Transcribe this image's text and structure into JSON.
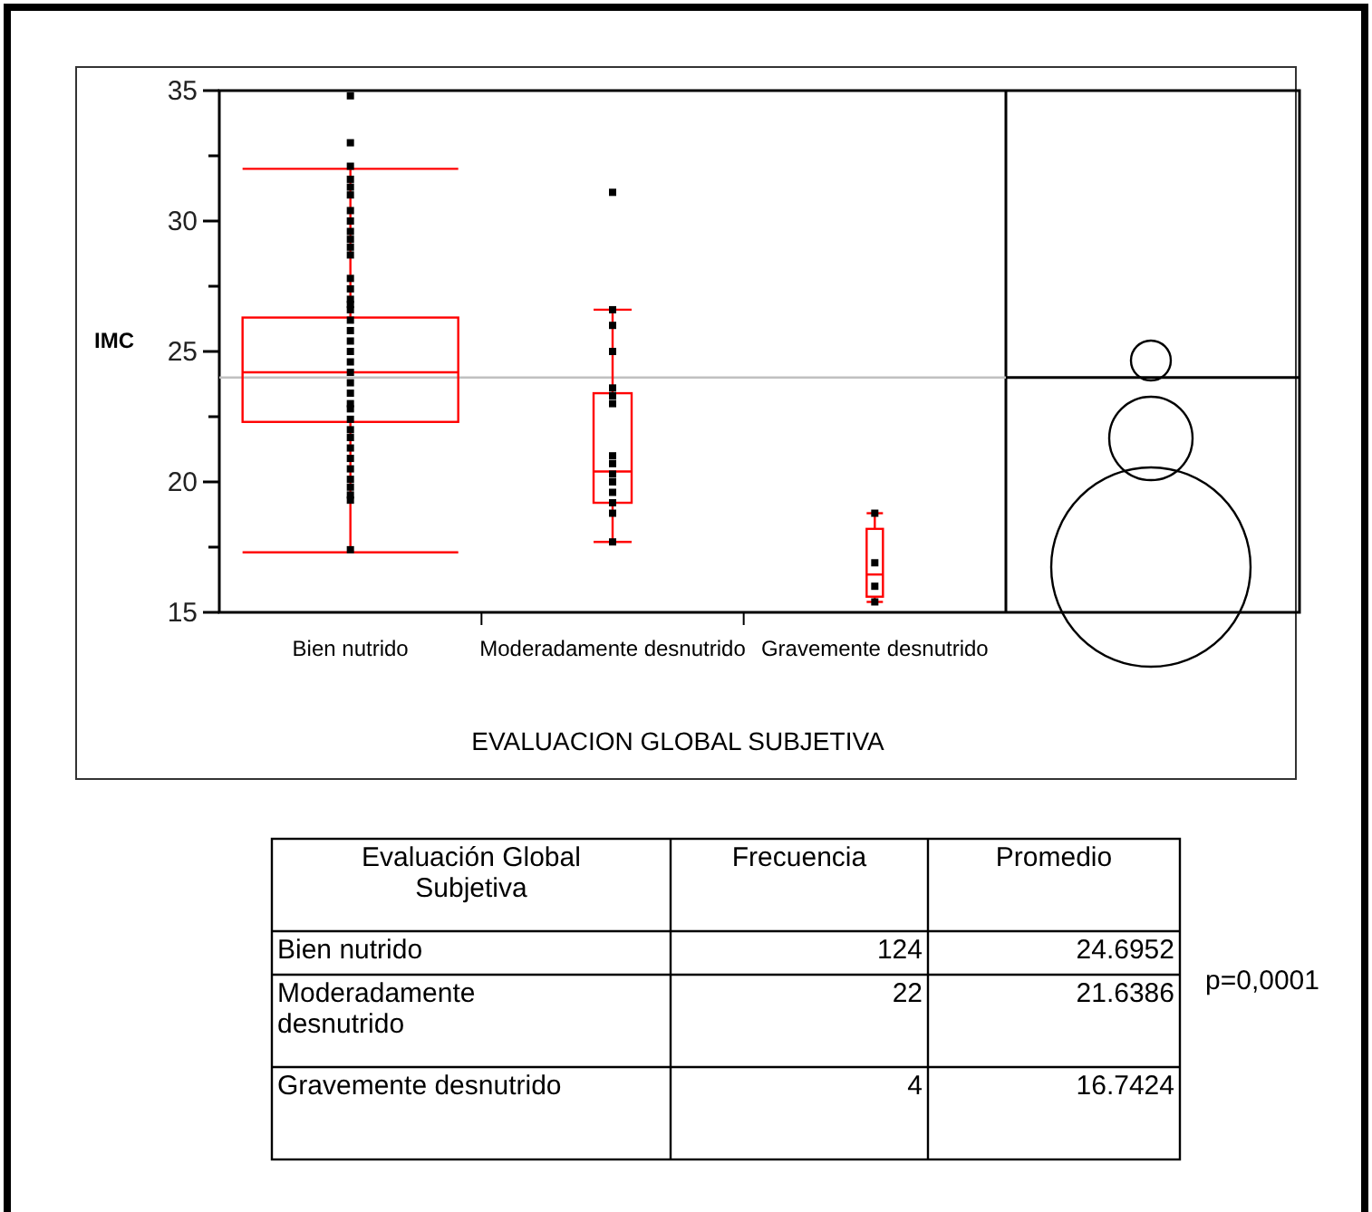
{
  "chart_data": {
    "type": "box",
    "xlabel": "EVALUACION GLOBAL SUBJETIVA",
    "ylabel": "IMC",
    "categories": [
      "Bien nutrido",
      "Moderadamente desnutrido",
      "Gravemente desnutrido"
    ],
    "ylim": [
      15,
      35
    ],
    "yticks": [
      15,
      {
        "value": 17.5,
        "label": null
      },
      20,
      {
        "value": 22.5,
        "label": null
      },
      25,
      {
        "value": 27.5,
        "label": null
      },
      30,
      {
        "value": 32.5,
        "label": null
      },
      35
    ],
    "series": [
      {
        "type": "box",
        "color": "#ff0000",
        "boxes": [
          {
            "low": 17.3,
            "q1": 22.3,
            "median": 24.2,
            "q3": 26.3,
            "high": 32.0
          },
          {
            "low": 17.7,
            "q1": 19.2,
            "median": 20.4,
            "q3": 23.4,
            "high": 26.6
          },
          {
            "low": 15.4,
            "q1": 15.6,
            "median": 16.45,
            "q3": 18.2,
            "high": 18.8
          }
        ]
      },
      {
        "type": "scatter",
        "color": "#000000",
        "marker": "square",
        "x": [
          "Bien nutrido",
          "Bien nutrido",
          "Bien nutrido",
          "Bien nutrido",
          "Bien nutrido",
          "Bien nutrido",
          "Bien nutrido",
          "Bien nutrido",
          "Bien nutrido",
          "Bien nutrido",
          "Bien nutrido",
          "Bien nutrido",
          "Bien nutrido",
          "Bien nutrido",
          "Bien nutrido",
          "Bien nutrido",
          "Bien nutrido",
          "Bien nutrido",
          "Bien nutrido",
          "Bien nutrido",
          "Bien nutrido",
          "Bien nutrido",
          "Bien nutrido",
          "Bien nutrido",
          "Bien nutrido",
          "Bien nutrido",
          "Bien nutrido",
          "Bien nutrido",
          "Bien nutrido",
          "Bien nutrido",
          "Bien nutrido",
          "Bien nutrido",
          "Bien nutrido",
          "Bien nutrido",
          "Bien nutrido",
          "Bien nutrido",
          "Bien nutrido",
          "Bien nutrido",
          "Moderadamente desnutrido",
          "Moderadamente desnutrido",
          "Moderadamente desnutrido",
          "Moderadamente desnutrido",
          "Moderadamente desnutrido",
          "Moderadamente desnutrido",
          "Moderadamente desnutrido",
          "Moderadamente desnutrido",
          "Moderadamente desnutrido",
          "Moderadamente desnutrido",
          "Moderadamente desnutrido",
          "Moderadamente desnutrido",
          "Moderadamente desnutrido",
          "Moderadamente desnutrido",
          "Moderadamente desnutrido",
          "Gravemente desnutrido",
          "Gravemente desnutrido",
          "Gravemente desnutrido",
          "Gravemente desnutrido"
        ],
        "values": [
          34.8,
          33.0,
          32.1,
          31.6,
          31.3,
          31.0,
          30.4,
          30.0,
          29.6,
          29.3,
          29.0,
          28.7,
          27.8,
          27.4,
          27.0,
          26.6,
          26.2,
          25.8,
          25.4,
          25.0,
          24.6,
          24.2,
          23.8,
          23.4,
          23.0,
          22.8,
          22.4,
          22.0,
          21.7,
          21.3,
          20.9,
          20.5,
          20.1,
          19.8,
          19.5,
          19.3,
          26.8,
          17.4,
          31.1,
          26.6,
          26.0,
          25.0,
          23.6,
          23.3,
          23.0,
          21.0,
          20.7,
          20.3,
          20.0,
          19.6,
          19.2,
          18.8,
          17.7,
          18.8,
          16.9,
          16.0,
          15.4
        ]
      }
    ],
    "ref_lines": [
      {
        "axis": "y",
        "value": 24,
        "color": "#c0c0c0"
      }
    ],
    "annotations": [
      "Evaluación Global Subjetiva",
      "Frecuencia",
      "Promedio",
      "Bien nutrido",
      "124",
      "24.6952",
      "Moderadamente desnutrido",
      "22",
      "21.6386",
      "Gravemente desnutrido",
      "4",
      "16.7424",
      "p=0,0001"
    ]
  }
}
